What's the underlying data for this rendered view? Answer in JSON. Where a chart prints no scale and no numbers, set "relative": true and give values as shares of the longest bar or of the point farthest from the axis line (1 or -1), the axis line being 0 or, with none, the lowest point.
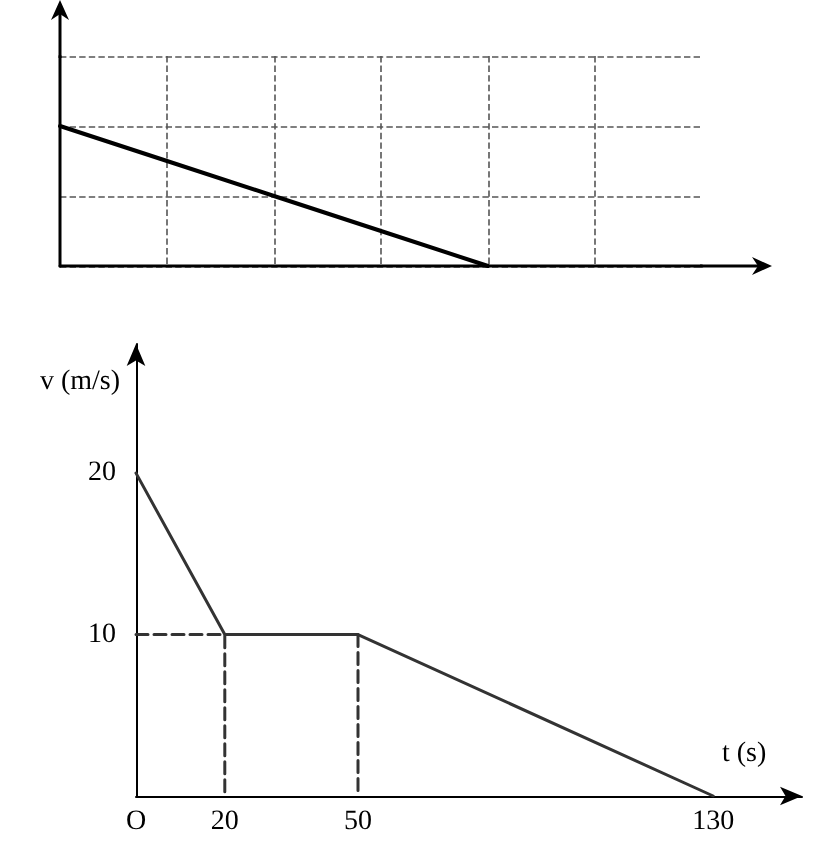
{
  "chart_data": [
    {
      "type": "line",
      "relative": true,
      "categories": [
        null,
        null,
        null,
        null,
        null,
        null,
        null
      ],
      "values": [
        1,
        0.75,
        0.5,
        0.25,
        0,
        null,
        null
      ],
      "color": "#000000",
      "grid": true,
      "marker": "none"
    },
    {
      "type": "line",
      "xlabel": "t (s)",
      "ylabel": "v (m/s)",
      "xlim": [
        0,
        150
      ],
      "ylim": [
        0,
        28
      ],
      "xticks": [
        {
          "value": 0,
          "label": "O"
        },
        20,
        50,
        130
      ],
      "yticks": [
        10,
        20
      ],
      "grid": false,
      "marker": "none",
      "series": [
        {
          "color": "#333333",
          "x": [
            0,
            20,
            50,
            130
          ],
          "values": [
            20,
            10,
            10,
            0
          ],
          "line_style": "solid"
        },
        {
          "color": "#333333",
          "x": [
            0,
            20,
            20
          ],
          "values": [
            10,
            10,
            0
          ],
          "line_style": "dashed"
        },
        {
          "color": "#333333",
          "x": [
            50,
            50
          ],
          "values": [
            10,
            0
          ],
          "line_style": "dashed"
        }
      ]
    }
  ]
}
